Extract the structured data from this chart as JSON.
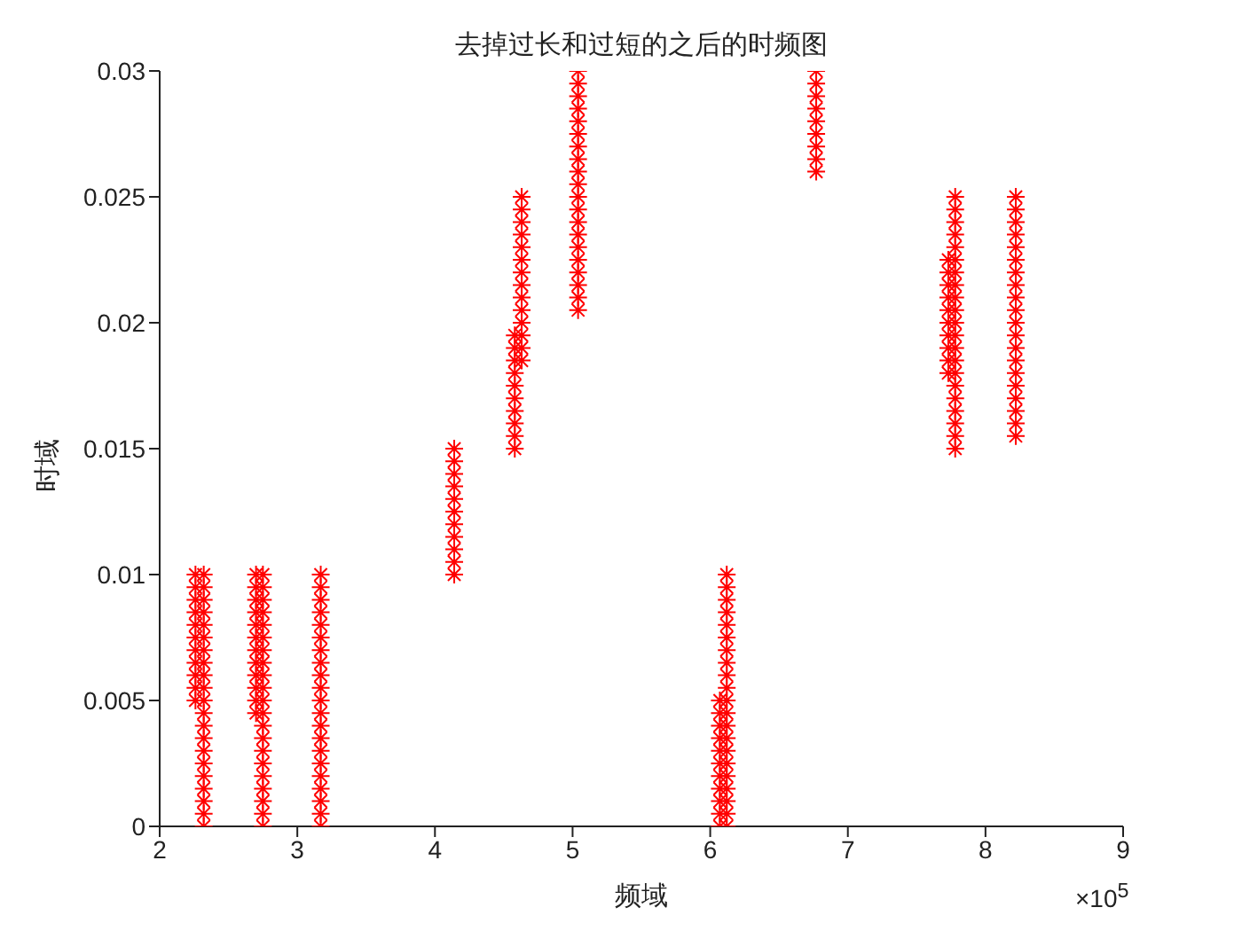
{
  "chart_data": {
    "type": "scatter",
    "title": "去掉过长和过短的之后的时频图",
    "xlabel": "频域",
    "ylabel": "时域",
    "annotations": [
      "×10$^{5}$"
    ],
    "xlim": [
      2,
      9
    ],
    "xticks": [
      2,
      3,
      4,
      5,
      6,
      7,
      8,
      9
    ],
    "ylim": [
      0,
      0.03
    ],
    "yticks": [
      0,
      0.005,
      0.01,
      0.015,
      0.02,
      0.025,
      0.03
    ],
    "grid": false,
    "marker": "cross",
    "series": [
      {
        "color": "#ff0000",
        "x": [
          2.26,
          2.26,
          2.26,
          2.26,
          2.26,
          2.26,
          2.26,
          2.26,
          2.26,
          2.26,
          2.26
        ],
        "values": [
          0.005,
          0.0055,
          0.006,
          0.0065,
          0.007,
          0.0075,
          0.008,
          0.0085,
          0.009,
          0.0095,
          0.01
        ]
      },
      {
        "color": "#ff0000",
        "x": [
          2.32,
          2.32,
          2.32,
          2.32,
          2.32,
          2.32,
          2.32,
          2.32,
          2.32,
          2.32,
          2.32,
          2.32,
          2.32,
          2.32,
          2.32,
          2.32,
          2.32,
          2.32,
          2.32,
          2.32,
          2.32
        ],
        "values": [
          0,
          0.0005,
          0.001,
          0.0015,
          0.002,
          0.0025,
          0.003,
          0.0035,
          0.004,
          0.0045,
          0.005,
          0.0055,
          0.006,
          0.0065,
          0.007,
          0.0075,
          0.008,
          0.0085,
          0.009,
          0.0095,
          0.01
        ]
      },
      {
        "color": "#ff0000",
        "x": [
          2.7,
          2.7,
          2.7,
          2.7,
          2.7,
          2.7,
          2.7,
          2.7,
          2.7,
          2.7,
          2.7,
          2.7
        ],
        "values": [
          0.0045,
          0.005,
          0.0055,
          0.006,
          0.0065,
          0.007,
          0.0075,
          0.008,
          0.0085,
          0.009,
          0.0095,
          0.01
        ]
      },
      {
        "color": "#ff0000",
        "x": [
          2.75,
          2.75,
          2.75,
          2.75,
          2.75,
          2.75,
          2.75,
          2.75,
          2.75,
          2.75,
          2.75,
          2.75,
          2.75,
          2.75,
          2.75,
          2.75,
          2.75,
          2.75,
          2.75,
          2.75,
          2.75
        ],
        "values": [
          0,
          0.0005,
          0.001,
          0.0015,
          0.002,
          0.0025,
          0.003,
          0.0035,
          0.004,
          0.0045,
          0.005,
          0.0055,
          0.006,
          0.0065,
          0.007,
          0.0075,
          0.008,
          0.0085,
          0.009,
          0.0095,
          0.01
        ]
      },
      {
        "color": "#ff0000",
        "x": [
          3.17,
          3.17,
          3.17,
          3.17,
          3.17,
          3.17,
          3.17,
          3.17,
          3.17,
          3.17,
          3.17,
          3.17,
          3.17,
          3.17,
          3.17,
          3.17,
          3.17,
          3.17,
          3.17,
          3.17,
          3.17
        ],
        "values": [
          0,
          0.0005,
          0.001,
          0.0015,
          0.002,
          0.0025,
          0.003,
          0.0035,
          0.004,
          0.0045,
          0.005,
          0.0055,
          0.006,
          0.0065,
          0.007,
          0.0075,
          0.008,
          0.0085,
          0.009,
          0.0095,
          0.01
        ]
      },
      {
        "color": "#ff0000",
        "x": [
          4.14,
          4.14,
          4.14,
          4.14,
          4.14,
          4.14,
          4.14,
          4.14,
          4.14,
          4.14,
          4.14
        ],
        "values": [
          0.01,
          0.0105,
          0.011,
          0.0115,
          0.012,
          0.0125,
          0.013,
          0.0135,
          0.014,
          0.0145,
          0.015
        ]
      },
      {
        "color": "#ff0000",
        "x": [
          4.58,
          4.58,
          4.58,
          4.58,
          4.58,
          4.58,
          4.58,
          4.58,
          4.58,
          4.58
        ],
        "values": [
          0.015,
          0.0155,
          0.016,
          0.0165,
          0.017,
          0.0175,
          0.018,
          0.0185,
          0.019,
          0.0195
        ]
      },
      {
        "color": "#ff0000",
        "x": [
          4.63,
          4.63,
          4.63,
          4.63,
          4.63,
          4.63,
          4.63,
          4.63,
          4.63,
          4.63,
          4.63,
          4.63,
          4.63,
          4.63
        ],
        "values": [
          0.0185,
          0.019,
          0.0195,
          0.02,
          0.0205,
          0.021,
          0.0215,
          0.022,
          0.0225,
          0.023,
          0.0235,
          0.024,
          0.0245,
          0.025
        ]
      },
      {
        "color": "#ff0000",
        "x": [
          5.04,
          5.04,
          5.04,
          5.04,
          5.04,
          5.04,
          5.04,
          5.04,
          5.04,
          5.04,
          5.04,
          5.04,
          5.04,
          5.04,
          5.04,
          5.04,
          5.04,
          5.04,
          5.04,
          5.04
        ],
        "values": [
          0.0205,
          0.021,
          0.0215,
          0.022,
          0.0225,
          0.023,
          0.0235,
          0.024,
          0.0245,
          0.025,
          0.0255,
          0.026,
          0.0265,
          0.027,
          0.0275,
          0.028,
          0.0285,
          0.029,
          0.0295,
          0.03
        ]
      },
      {
        "color": "#ff0000",
        "x": [
          6.07,
          6.07,
          6.07,
          6.07,
          6.07,
          6.07,
          6.07,
          6.07,
          6.07,
          6.07,
          6.07
        ],
        "values": [
          0,
          0.0005,
          0.001,
          0.0015,
          0.002,
          0.0025,
          0.003,
          0.0035,
          0.004,
          0.0045,
          0.005
        ]
      },
      {
        "color": "#ff0000",
        "x": [
          6.12,
          6.12,
          6.12,
          6.12,
          6.12,
          6.12,
          6.12,
          6.12,
          6.12,
          6.12,
          6.12,
          6.12,
          6.12,
          6.12,
          6.12,
          6.12,
          6.12,
          6.12,
          6.12,
          6.12,
          6.12
        ],
        "values": [
          0,
          0.0005,
          0.001,
          0.0015,
          0.002,
          0.0025,
          0.003,
          0.0035,
          0.004,
          0.0045,
          0.005,
          0.0055,
          0.006,
          0.0065,
          0.007,
          0.0075,
          0.008,
          0.0085,
          0.009,
          0.0095,
          0.01
        ]
      },
      {
        "color": "#ff0000",
        "x": [
          6.77,
          6.77,
          6.77,
          6.77,
          6.77,
          6.77,
          6.77,
          6.77,
          6.77
        ],
        "values": [
          0.026,
          0.0265,
          0.027,
          0.0275,
          0.028,
          0.0285,
          0.029,
          0.0295,
          0.03
        ]
      },
      {
        "color": "#ff0000",
        "x": [
          7.73,
          7.73,
          7.73,
          7.73,
          7.73,
          7.73,
          7.73,
          7.73,
          7.73,
          7.73
        ],
        "values": [
          0.018,
          0.0185,
          0.019,
          0.0195,
          0.02,
          0.0205,
          0.021,
          0.0215,
          0.022,
          0.0225
        ]
      },
      {
        "color": "#ff0000",
        "x": [
          7.78,
          7.78,
          7.78,
          7.78,
          7.78,
          7.78,
          7.78,
          7.78,
          7.78,
          7.78,
          7.78,
          7.78,
          7.78,
          7.78,
          7.78,
          7.78,
          7.78,
          7.78,
          7.78,
          7.78,
          7.78
        ],
        "values": [
          0.015,
          0.0155,
          0.016,
          0.0165,
          0.017,
          0.0175,
          0.018,
          0.0185,
          0.019,
          0.0195,
          0.02,
          0.0205,
          0.021,
          0.0215,
          0.022,
          0.0225,
          0.023,
          0.0235,
          0.024,
          0.0245,
          0.025
        ]
      },
      {
        "color": "#ff0000",
        "x": [
          8.22,
          8.22,
          8.22,
          8.22,
          8.22,
          8.22,
          8.22,
          8.22,
          8.22,
          8.22,
          8.22,
          8.22,
          8.22,
          8.22,
          8.22,
          8.22,
          8.22,
          8.22,
          8.22,
          8.22
        ],
        "values": [
          0.0155,
          0.016,
          0.0165,
          0.017,
          0.0175,
          0.018,
          0.0185,
          0.019,
          0.0195,
          0.02,
          0.0205,
          0.021,
          0.0215,
          0.022,
          0.0225,
          0.023,
          0.0235,
          0.024,
          0.0245,
          0.025
        ]
      }
    ]
  }
}
